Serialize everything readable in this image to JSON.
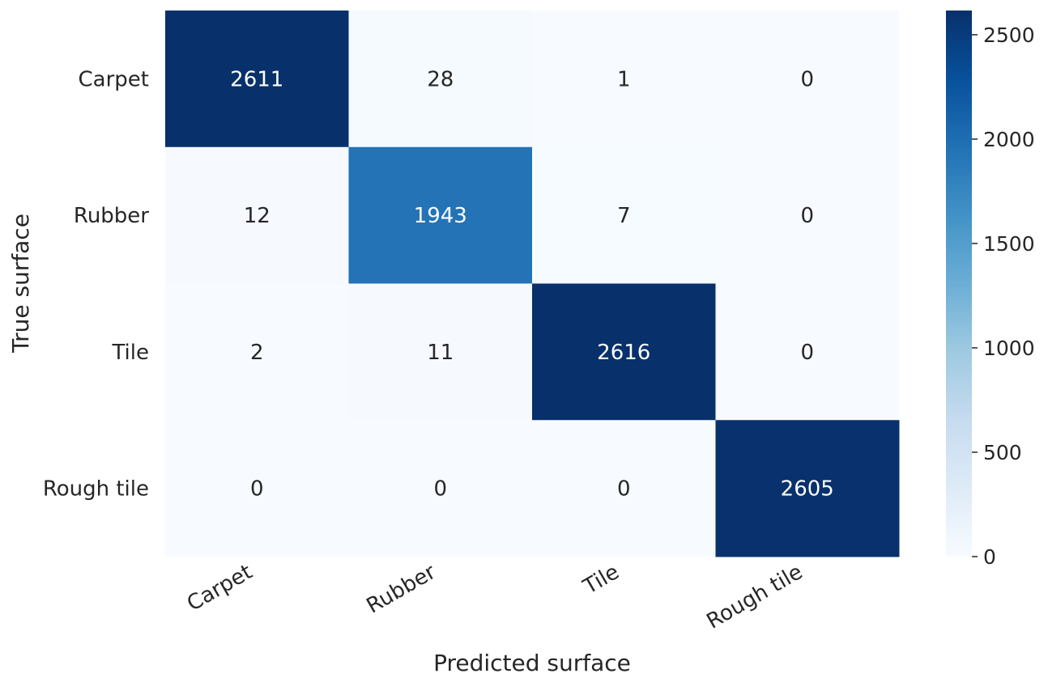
{
  "chart_data": {
    "type": "heatmap",
    "xlabel": "Predicted surface",
    "ylabel": "True surface",
    "x_categories": [
      "Carpet",
      "Rubber",
      "Tile",
      "Rough tile"
    ],
    "y_categories": [
      "Carpet",
      "Rubber",
      "Tile",
      "Rough tile"
    ],
    "values": [
      [
        2611,
        28,
        1,
        0
      ],
      [
        12,
        1943,
        7,
        0
      ],
      [
        2,
        11,
        2616,
        0
      ],
      [
        0,
        0,
        0,
        2605
      ]
    ],
    "colormap": "Blues",
    "colorbar": {
      "range": [
        0,
        2616
      ],
      "ticks": [
        "0",
        "500",
        "1000",
        "1500",
        "2000",
        "2500"
      ]
    },
    "colors": {
      "low": "#f7fbff",
      "high": "#08306b",
      "text_dark": "#262626",
      "text_light": "#ffffff"
    }
  }
}
